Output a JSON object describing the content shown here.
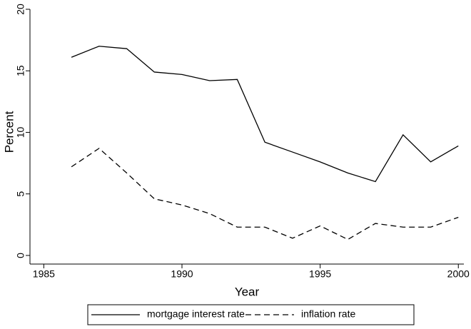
{
  "chart_data": {
    "type": "line",
    "x": [
      1986,
      1987,
      1988,
      1989,
      1990,
      1991,
      1992,
      1993,
      1994,
      1995,
      1996,
      1997,
      1998,
      1999,
      2000
    ],
    "series": [
      {
        "name": "mortgage interest rate",
        "color": "#000000",
        "style": "solid",
        "values": [
          16.1,
          17.0,
          16.8,
          14.9,
          14.7,
          14.2,
          14.3,
          9.2,
          8.4,
          7.6,
          6.7,
          6.0,
          9.8,
          7.6,
          8.9
        ]
      },
      {
        "name": "inflation rate",
        "color": "#000000",
        "style": "dashed",
        "values": [
          7.2,
          8.7,
          6.7,
          4.6,
          4.1,
          3.4,
          2.3,
          2.3,
          1.4,
          2.4,
          1.3,
          2.6,
          2.3,
          2.3,
          3.1
        ]
      }
    ],
    "x_label": "Year",
    "y_label": "Percent",
    "xlim": [
      1984.5,
      2000.2
    ],
    "ylim": [
      -0.7,
      20
    ],
    "xticks": [
      1985,
      1990,
      1995,
      2000
    ],
    "yticks": [
      0,
      5,
      10,
      15,
      20
    ],
    "grid": false,
    "legend": "bottom"
  }
}
